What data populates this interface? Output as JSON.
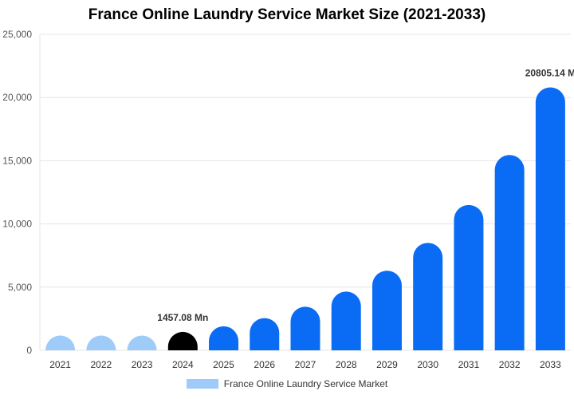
{
  "chart_data": {
    "type": "bar",
    "title": "France Online Laundry Service Market Size (2021-2033)",
    "categories": [
      "2021",
      "2022",
      "2023",
      "2024",
      "2025",
      "2026",
      "2027",
      "2028",
      "2029",
      "2030",
      "2031",
      "2032",
      "2033"
    ],
    "series": [
      {
        "name": "France Online Laundry Service Market",
        "values": [
          600,
          780,
          1050,
          1457.08,
          1900,
          2550,
          3450,
          4650,
          6300,
          8500,
          11500,
          15450,
          20805.14
        ]
      }
    ],
    "ylim": [
      0,
      25000
    ],
    "yticks": [
      "0",
      "5,000",
      "10,000",
      "15,000",
      "20,000",
      "25,000"
    ],
    "ytick_values": [
      0,
      5000,
      10000,
      15000,
      20000,
      25000
    ],
    "grid": "horizontal",
    "legend": "bottom-center",
    "bar_colors": {
      "historical": "#9fcbf9",
      "base_year": "#000000",
      "forecast": "#0a6cf5"
    },
    "year_groups": [
      "historical",
      "historical",
      "historical",
      "base_year",
      "forecast",
      "forecast",
      "forecast",
      "forecast",
      "forecast",
      "forecast",
      "forecast",
      "forecast",
      "forecast"
    ],
    "annotations": [
      {
        "category": "2024",
        "text": "1457.08 Mn"
      },
      {
        "category": "2033",
        "text": "20805.14 M"
      }
    ]
  }
}
